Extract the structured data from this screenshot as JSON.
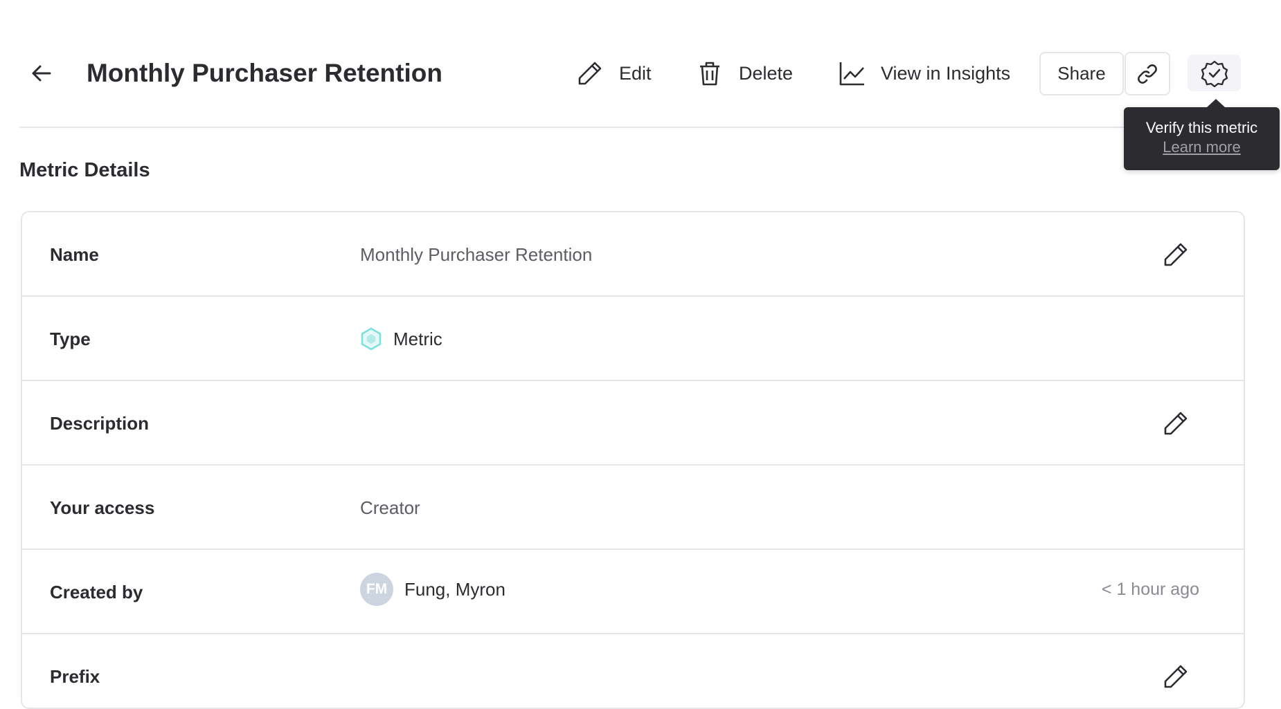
{
  "header": {
    "title": "Monthly Purchaser Retention",
    "edit_label": "Edit",
    "delete_label": "Delete",
    "insights_label": "View in Insights",
    "share_label": "Share"
  },
  "tooltip": {
    "text": "Verify this metric",
    "link": "Learn more"
  },
  "section_title": "Metric Details",
  "details": {
    "name": {
      "label": "Name",
      "value": "Monthly Purchaser Retention"
    },
    "type": {
      "label": "Type",
      "value": "Metric",
      "icon_color": "#7ee0dc"
    },
    "description": {
      "label": "Description",
      "value": ""
    },
    "access": {
      "label": "Your access",
      "value": "Creator"
    },
    "created_by": {
      "label": "Created by",
      "initials": "FM",
      "value": "Fung, Myron",
      "time": "< 1 hour ago",
      "avatar_color": "#cdd5e1"
    },
    "prefix": {
      "label": "Prefix",
      "value": ""
    }
  }
}
